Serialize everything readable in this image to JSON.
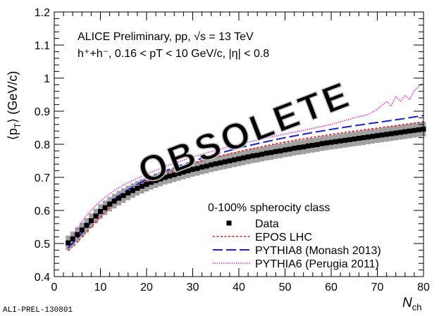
{
  "chart_data": {
    "type": "line",
    "annotation_lines": [
      {
        "text": "ALICE Preliminary, pp, √s = 13 TeV"
      },
      {
        "text": "h⁺+h⁻, 0.16 < pT < 10 GeV/c, |η| < 0.8"
      }
    ],
    "xlabel": {
      "main": "N",
      "sub": "ch"
    },
    "ylabel": {
      "pre": "⟨p",
      "sub": "T",
      "post": "⟩ (GeV/c)"
    },
    "xlim": [
      0,
      80
    ],
    "ylim": [
      0.4,
      1.2
    ],
    "x_ticks": [
      0,
      10,
      20,
      30,
      40,
      50,
      60,
      70,
      80
    ],
    "y_ticks": [
      0.4,
      0.5,
      0.6,
      0.7,
      0.8,
      0.9,
      1.0,
      1.1,
      1.2
    ],
    "x_tick_labels": [
      "0",
      "10",
      "20",
      "30",
      "40",
      "50",
      "60",
      "70",
      "80"
    ],
    "y_tick_labels": [
      "0.4",
      "0.5",
      "0.6",
      "0.7",
      "0.8",
      "0.9",
      "1",
      "1.1",
      "1.2"
    ],
    "legend_header": "0-100% spherocity class",
    "legend_position": "bottom-right",
    "watermark": "OBSOLETE",
    "footer_label": "ALI-PREL-130801",
    "series": [
      {
        "name": "Data",
        "style": "markers-with-syst-band",
        "color": "#000000",
        "band_color": "#a0a0a0",
        "x": [
          3,
          4,
          5,
          6,
          7,
          8,
          9,
          10,
          11,
          12,
          13,
          14,
          15,
          16,
          17,
          18,
          19,
          20,
          21,
          22,
          23,
          24,
          25,
          26,
          27,
          28,
          29,
          30,
          31,
          32,
          33,
          34,
          35,
          36,
          37,
          38,
          39,
          40,
          41,
          42,
          43,
          44,
          45,
          46,
          47,
          48,
          49,
          50,
          51,
          52,
          53,
          54,
          55,
          56,
          57,
          58,
          59,
          60,
          61,
          62,
          63,
          64,
          65,
          66,
          67,
          68,
          69,
          70,
          71,
          72,
          73,
          74,
          75,
          76,
          77,
          78,
          79,
          80
        ],
        "y": [
          0.502,
          0.514,
          0.527,
          0.541,
          0.555,
          0.569,
          0.583,
          0.597,
          0.608,
          0.619,
          0.628,
          0.637,
          0.645,
          0.653,
          0.66,
          0.667,
          0.673,
          0.679,
          0.685,
          0.69,
          0.695,
          0.7,
          0.704,
          0.708,
          0.712,
          0.716,
          0.72,
          0.724,
          0.727,
          0.731,
          0.734,
          0.738,
          0.741,
          0.744,
          0.747,
          0.75,
          0.753,
          0.756,
          0.759,
          0.762,
          0.765,
          0.767,
          0.77,
          0.773,
          0.775,
          0.778,
          0.78,
          0.783,
          0.785,
          0.788,
          0.79,
          0.792,
          0.795,
          0.797,
          0.799,
          0.802,
          0.804,
          0.806,
          0.808,
          0.81,
          0.812,
          0.814,
          0.816,
          0.818,
          0.82,
          0.822,
          0.824,
          0.826,
          0.828,
          0.83,
          0.832,
          0.834,
          0.836,
          0.838,
          0.84,
          0.842,
          0.844,
          0.846
        ],
        "syst": 0.022
      },
      {
        "name": "EPOS LHC",
        "style": "dotted",
        "color": "#e8191b",
        "x": [
          3,
          5,
          7,
          9,
          11,
          13,
          15,
          18,
          20,
          25,
          30,
          35,
          40,
          45,
          50,
          55,
          60,
          65,
          70,
          75,
          80
        ],
        "y": [
          0.478,
          0.505,
          0.535,
          0.565,
          0.595,
          0.622,
          0.645,
          0.673,
          0.688,
          0.717,
          0.741,
          0.761,
          0.778,
          0.793,
          0.807,
          0.819,
          0.83,
          0.84,
          0.849,
          0.858,
          0.868
        ]
      },
      {
        "name": "PYTHIA8 (Monash 2013)",
        "style": "long-dash",
        "color": "#1c22c8",
        "x": [
          3,
          5,
          7,
          9,
          11,
          13,
          15,
          18,
          20,
          25,
          30,
          35,
          40,
          45,
          50,
          55,
          60,
          65,
          70,
          75,
          80
        ],
        "y": [
          0.487,
          0.516,
          0.549,
          0.58,
          0.609,
          0.634,
          0.654,
          0.679,
          0.694,
          0.724,
          0.749,
          0.77,
          0.789,
          0.805,
          0.82,
          0.833,
          0.845,
          0.856,
          0.866,
          0.876,
          0.887
        ]
      },
      {
        "name": "PYTHIA6 (Perugia 2011)",
        "style": "fine-dotted",
        "color": "#e01ee6",
        "x": [
          3,
          5,
          7,
          9,
          11,
          13,
          15,
          18,
          20,
          25,
          30,
          35,
          40,
          45,
          50,
          55,
          60,
          65,
          68,
          70,
          71,
          72,
          73,
          74,
          75,
          76,
          77,
          78,
          79,
          80
        ],
        "y": [
          0.498,
          0.545,
          0.585,
          0.615,
          0.64,
          0.66,
          0.677,
          0.697,
          0.71,
          0.738,
          0.762,
          0.782,
          0.8,
          0.816,
          0.831,
          0.845,
          0.86,
          0.88,
          0.89,
          0.905,
          0.918,
          0.93,
          0.915,
          0.945,
          0.93,
          0.948,
          0.935,
          0.962,
          0.975,
          0.985
        ]
      }
    ]
  }
}
